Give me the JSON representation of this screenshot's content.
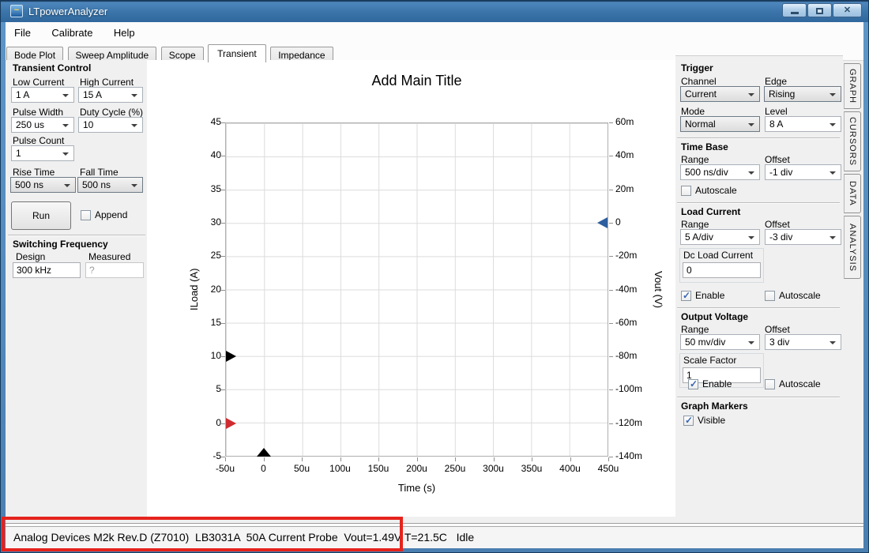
{
  "window": {
    "title": "LTpowerAnalyzer",
    "icons": {
      "close": "✕",
      "app_wave": "~"
    }
  },
  "menu": {
    "items": [
      "File",
      "Calibrate",
      "Help"
    ]
  },
  "tabs": {
    "items": [
      {
        "label": "Bode Plot"
      },
      {
        "label": "Sweep Amplitude"
      },
      {
        "label": "Scope"
      },
      {
        "label": "Transient"
      },
      {
        "label": "Impedance"
      }
    ],
    "active": "Transient"
  },
  "side_tabs": {
    "items": [
      {
        "label": "GRAPH"
      },
      {
        "label": "CURSORS"
      },
      {
        "label": "DATA"
      },
      {
        "label": "ANALYSIS"
      }
    ]
  },
  "transient_control": {
    "title": "Transient Control",
    "low_current": {
      "label": "Low Current",
      "value": "1 A"
    },
    "high_current": {
      "label": "High Current",
      "value": "15 A"
    },
    "pulse_width": {
      "label": "Pulse Width",
      "value": "250 us"
    },
    "duty_cycle": {
      "label": "Duty Cycle (%)",
      "value": "10"
    },
    "pulse_count": {
      "label": "Pulse Count",
      "value": "1"
    },
    "rise_time": {
      "label": "Rise Time",
      "value": "500 ns"
    },
    "fall_time": {
      "label": "Fall Time",
      "value": "500 ns"
    },
    "run_label": "Run",
    "append": {
      "label": "Append",
      "checked": false
    }
  },
  "switching_frequency": {
    "title": "Switching Frequency",
    "design": {
      "label": "Design",
      "value": "300 kHz"
    },
    "measured": {
      "label": "Measured",
      "value": "?"
    }
  },
  "trigger": {
    "title": "Trigger",
    "channel": {
      "label": "Channel",
      "value": "Current"
    },
    "edge": {
      "label": "Edge",
      "value": "Rising"
    },
    "mode": {
      "label": "Mode",
      "value": "Normal"
    },
    "level": {
      "label": "Level",
      "value": "8 A"
    }
  },
  "time_base": {
    "title": "Time Base",
    "range": {
      "label": "Range",
      "value": "500 ns/div"
    },
    "offset": {
      "label": "Offset",
      "value": "-1 div"
    },
    "autoscale": {
      "label": "Autoscale",
      "checked": false
    }
  },
  "load_current": {
    "title": "Load Current",
    "range": {
      "label": "Range",
      "value": "5 A/div"
    },
    "offset": {
      "label": "Offset",
      "value": "-3 div"
    },
    "dc_load_current": {
      "label": "Dc Load Current",
      "value": "0"
    },
    "enable": {
      "label": "Enable",
      "checked": true
    },
    "autoscale": {
      "label": "Autoscale",
      "checked": false
    }
  },
  "output_voltage": {
    "title": "Output Voltage",
    "range": {
      "label": "Range",
      "value": "50 mv/div"
    },
    "offset": {
      "label": "Offset",
      "value": "3 div"
    },
    "scale_factor": {
      "label": "Scale Factor",
      "value": "1"
    },
    "enable": {
      "label": "Enable",
      "checked": true
    },
    "autoscale": {
      "label": "Autoscale",
      "checked": false
    }
  },
  "graph_markers": {
    "title": "Graph Markers",
    "visible": {
      "label": "Visible",
      "checked": true
    }
  },
  "status_bar": {
    "text": "Analog Devices M2k Rev.D (Z7010)  LB3031A  50A Current Probe  Vout=1.49V T=21.5C   Idle"
  },
  "annotation": {
    "highlight_color": "#e5231d"
  },
  "chart_data": {
    "type": "line",
    "title": "Add Main Title",
    "xlabel": "Time (s)",
    "ylabel_left": "ILoad (A)",
    "ylabel_right": "Vout (V)",
    "x_ticks": [
      "-50u",
      "0",
      "50u",
      "100u",
      "150u",
      "200u",
      "250u",
      "300u",
      "350u",
      "400u",
      "450u"
    ],
    "y_left_ticks": [
      "45",
      "40",
      "35",
      "30",
      "25",
      "20",
      "15",
      "10",
      "5",
      "0",
      "-5"
    ],
    "y_right_ticks": [
      "60m",
      "40m",
      "20m",
      "0",
      "-20m",
      "-40m",
      "-60m",
      "-80m",
      "-100m",
      "-120m",
      "-140m"
    ],
    "x_range_us": [
      -50,
      450
    ],
    "y_left_range": [
      -5,
      45
    ],
    "y_right_range_mV": [
      -140,
      60
    ],
    "grid": true,
    "series": [],
    "markers": [
      {
        "name": "iload-high",
        "axis": "left",
        "value": 10,
        "color": "#000000",
        "direction": "right"
      },
      {
        "name": "iload-low",
        "axis": "left",
        "value": 0,
        "color": "#cf2b30",
        "direction": "right"
      },
      {
        "name": "vout-zero",
        "axis": "right",
        "value": 0,
        "color": "#2d5e9e",
        "direction": "left"
      },
      {
        "name": "time-zero",
        "axis": "x",
        "value": 0,
        "color": "#000000",
        "direction": "up"
      }
    ]
  }
}
